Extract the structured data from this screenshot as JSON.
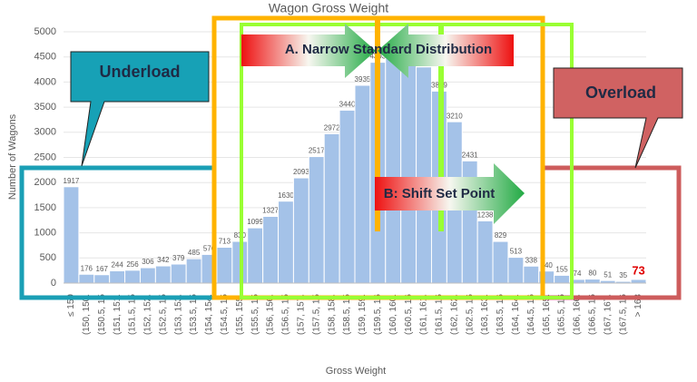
{
  "chart_data": {
    "type": "bar",
    "title": "Wagon Gross Weight",
    "x_label": "Gross Weight",
    "y_label": "Number of Wagons",
    "categories": [
      "≤ 150",
      "(150, 150.",
      "(150.5, 15",
      "(151, 151.",
      "(151.5, 15",
      "(152, 152.",
      "(152.5, 15",
      "(153, 153.",
      "(153.5, 15",
      "(154, 154.",
      "(154.5, 15",
      "(155, 155.",
      "(155.5, 15",
      "(156, 156.",
      "(156.5, 15",
      "(157, 157.",
      "(157.5, 15",
      "(158, 158.",
      "(158.5, 15",
      "(159, 159.",
      "(159.5, 16",
      "(160, 160.",
      "(160.5, 16",
      "(161, 161.",
      "(161.5, 16",
      "(162, 162.",
      "(162.5, 16",
      "(163, 163.",
      "(163.5, 16",
      "(164, 164.",
      "(164.5, 16",
      "(165, 165.",
      "(165.5, 16",
      "(166, 166.",
      "(166.5, 16",
      "(167, 167.",
      "(167.5, 16",
      "> 168"
    ],
    "values": [
      1917,
      176,
      167,
      244,
      256,
      306,
      342,
      379,
      485,
      570,
      713,
      830,
      1099,
      1327,
      1630,
      2093,
      2517,
      2972,
      3440,
      3935,
      4393,
      4600,
      4650,
      4300,
      3819,
      3210,
      2431,
      1238,
      829,
      513,
      338,
      240,
      155,
      74,
      80,
      51,
      35,
      73
    ],
    "color": "#a4c2e8",
    "ylim": [
      0,
      5000
    ],
    "yticks": [
      0,
      500,
      1000,
      1500,
      2000,
      2500,
      3000,
      3500,
      4000,
      4500,
      5000
    ],
    "grid": true,
    "annotations": [
      "A. Narrow Standard Distribution",
      "B: Shift Set Point",
      "Underload",
      "Overload"
    ]
  }
}
